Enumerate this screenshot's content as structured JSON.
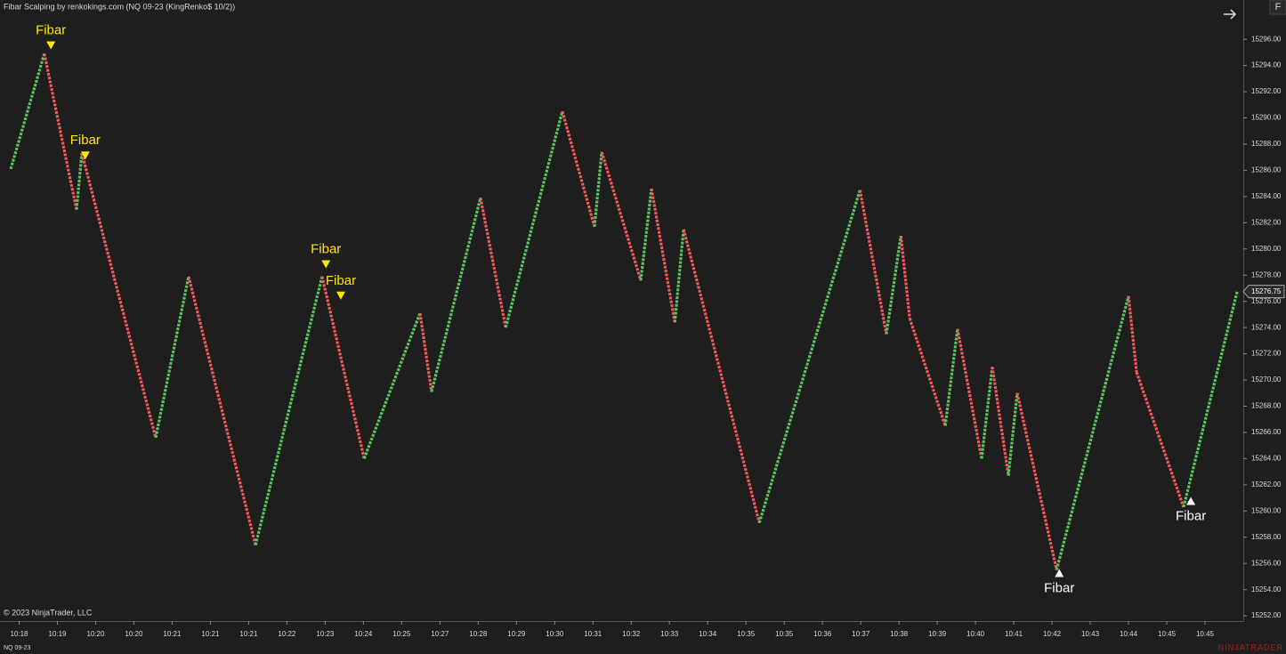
{
  "chart_data": {
    "type": "line",
    "title": "Fibar Scalping by renkokings.com (NQ 09-23 (KingRenko$ 10/2))",
    "instrument": "NQ 09-23",
    "copyright": "© 2023 NinjaTrader, LLC",
    "brand": "NINJATRADER",
    "button": "F",
    "up_color": "#5cc25f",
    "down_color": "#f05a5a",
    "x": [
      2.8,
      11.6,
      20.0,
      21.4,
      40.7,
      49.3,
      66.8,
      84.2,
      95.2,
      109.8,
      112.8,
      125.6,
      132.2,
      147.0,
      155.4,
      157.3,
      167.5,
      170.3,
      176.4,
      178.7,
      198.5,
      224.8,
      231.7,
      235.5,
      237.8,
      247.1,
      250.3,
      256.6,
      259.4,
      263.6,
      265.9,
      276.2,
      295.0,
      297.1,
      309.4,
      323.4
    ],
    "values": [
      15286.1,
      15294.9,
      15283.0,
      15287.3,
      15265.6,
      15277.9,
      15257.4,
      15277.9,
      15264.0,
      15275.1,
      15269.1,
      15283.9,
      15274.0,
      15290.5,
      15281.7,
      15287.4,
      15277.6,
      15284.6,
      15274.4,
      15281.5,
      15259.1,
      15284.5,
      15273.5,
      15281.0,
      15274.7,
      15266.5,
      15273.9,
      15264.0,
      15271.0,
      15262.7,
      15269.0,
      15255.5,
      15276.4,
      15270.6,
      15260.3,
      15276.75
    ],
    "current_price": 15276.75,
    "annotations": [
      {
        "text": "Fibar",
        "x": 13.3,
        "y": 15295.5,
        "direction": "down",
        "color": "#ffe600"
      },
      {
        "text": "Fibar",
        "x": 22.3,
        "y": 15287.1,
        "direction": "down",
        "color": "#ffe600"
      },
      {
        "text": "Fibar",
        "x": 85.2,
        "y": 15278.8,
        "direction": "down",
        "color": "#ffe600"
      },
      {
        "text": "Fibar",
        "x": 89.1,
        "y": 15276.4,
        "direction": "down",
        "color": "#ffe600"
      },
      {
        "text": "Fibar",
        "x": 276.9,
        "y": 15255.3,
        "direction": "up",
        "color": "#ffffff"
      },
      {
        "text": "Fibar",
        "x": 311.3,
        "y": 15260.8,
        "direction": "up",
        "color": "#ffffff"
      }
    ],
    "xlim": [
      0,
      325
    ],
    "ylim": [
      15251.6,
      15299
    ],
    "xticks": [
      {
        "value": 5,
        "label": "10:18"
      },
      {
        "value": 15,
        "label": "10:19"
      },
      {
        "value": 25,
        "label": "10:20"
      },
      {
        "value": 35,
        "label": "10:20"
      },
      {
        "value": 45,
        "label": "10:21"
      },
      {
        "value": 55,
        "label": "10:21"
      },
      {
        "value": 65,
        "label": "10:21"
      },
      {
        "value": 75,
        "label": "10:22"
      },
      {
        "value": 85,
        "label": "10:23"
      },
      {
        "value": 95,
        "label": "10:24"
      },
      {
        "value": 105,
        "label": "10:25"
      },
      {
        "value": 115,
        "label": "10:27"
      },
      {
        "value": 125,
        "label": "10:28"
      },
      {
        "value": 135,
        "label": "10:29"
      },
      {
        "value": 145,
        "label": "10:30"
      },
      {
        "value": 155,
        "label": "10:31"
      },
      {
        "value": 165,
        "label": "10:32"
      },
      {
        "value": 175,
        "label": "10:33"
      },
      {
        "value": 185,
        "label": "10:34"
      },
      {
        "value": 195,
        "label": "10:35"
      },
      {
        "value": 205,
        "label": "10:35"
      },
      {
        "value": 215,
        "label": "10:36"
      },
      {
        "value": 225,
        "label": "10:37"
      },
      {
        "value": 235,
        "label": "10:38"
      },
      {
        "value": 245,
        "label": "10:39"
      },
      {
        "value": 255,
        "label": "10:40"
      },
      {
        "value": 265,
        "label": "10:41"
      },
      {
        "value": 275,
        "label": "10:42"
      },
      {
        "value": 285,
        "label": "10:43"
      },
      {
        "value": 295,
        "label": "10:44"
      },
      {
        "value": 305,
        "label": "10:45"
      },
      {
        "value": 315,
        "label": "10:45"
      }
    ],
    "yticks": [
      {
        "value": 15252,
        "label": "15252.00"
      },
      {
        "value": 15254,
        "label": "15254.00"
      },
      {
        "value": 15256,
        "label": "15256.00"
      },
      {
        "value": 15258,
        "label": "15258.00"
      },
      {
        "value": 15260,
        "label": "15260.00"
      },
      {
        "value": 15262,
        "label": "15262.00"
      },
      {
        "value": 15264,
        "label": "15264.00"
      },
      {
        "value": 15266,
        "label": "15266.00"
      },
      {
        "value": 15268,
        "label": "15268.00"
      },
      {
        "value": 15270,
        "label": "15270.00"
      },
      {
        "value": 15272,
        "label": "15272.00"
      },
      {
        "value": 15274,
        "label": "15274.00"
      },
      {
        "value": 15276,
        "label": "15276.00"
      },
      {
        "value": 15278,
        "label": "15278.00"
      },
      {
        "value": 15280,
        "label": "15280.00"
      },
      {
        "value": 15282,
        "label": "15282.00"
      },
      {
        "value": 15284,
        "label": "15284.00"
      },
      {
        "value": 15286,
        "label": "15286.00"
      },
      {
        "value": 15288,
        "label": "15288.00"
      },
      {
        "value": 15290,
        "label": "15290.00"
      },
      {
        "value": 15292,
        "label": "15292.00"
      },
      {
        "value": 15294,
        "label": "15294.00"
      },
      {
        "value": 15296,
        "label": "15296.00"
      }
    ],
    "grid": false
  }
}
